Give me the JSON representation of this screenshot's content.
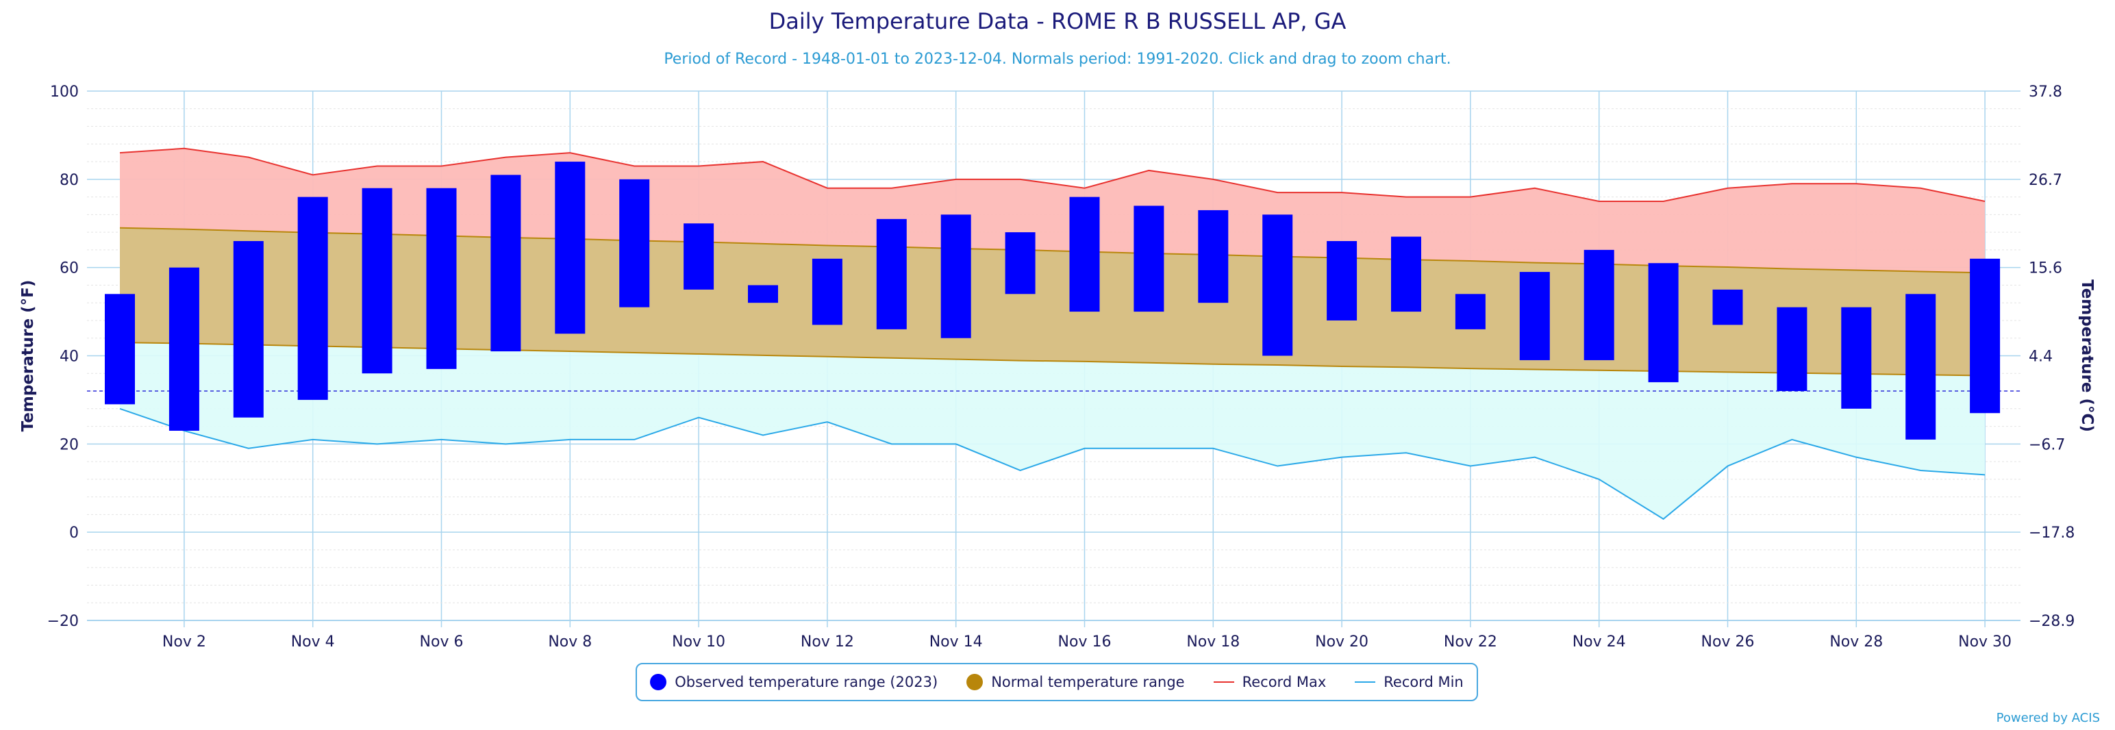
{
  "chart_data": {
    "type": "bar",
    "title": "Daily Temperature Data - ROME R B RUSSELL AP, GA",
    "subtitle": "Period of Record - 1948-01-01 to 2023-12-04. Normals period: 1991-2020. Click and drag to zoom chart.",
    "ylabel": "Temperature (°F)",
    "ylabel_right": "Temperature (°C)",
    "ylim": [
      -20,
      100
    ],
    "yticks": [
      "100",
      "80",
      "60",
      "40",
      "20",
      "0",
      "−20"
    ],
    "yticks_right": [
      "37.8",
      "26.7",
      "15.6",
      "4.4",
      "−6.7",
      "−17.8",
      "−28.9"
    ],
    "xticks": [
      "Nov 2",
      "Nov 4",
      "Nov 6",
      "Nov 8",
      "Nov 10",
      "Nov 12",
      "Nov 14",
      "Nov 16",
      "Nov 18",
      "Nov 20",
      "Nov 22",
      "Nov 24",
      "Nov 26",
      "Nov 28",
      "Nov 30"
    ],
    "freezing_line": 32,
    "days": [
      1,
      2,
      3,
      4,
      5,
      6,
      7,
      8,
      9,
      10,
      11,
      12,
      13,
      14,
      15,
      16,
      17,
      18,
      19,
      20,
      21,
      22,
      23,
      24,
      25,
      26,
      27,
      28,
      29,
      30
    ],
    "observed_low": [
      29,
      23,
      26,
      30,
      36,
      37,
      41,
      45,
      51,
      55,
      52,
      47,
      46,
      44,
      54,
      50,
      50,
      52,
      40,
      48,
      50,
      46,
      39,
      39,
      34,
      47,
      32,
      28,
      21,
      27
    ],
    "observed_high": [
      54,
      60,
      66,
      76,
      78,
      78,
      81,
      84,
      80,
      70,
      56,
      62,
      71,
      72,
      68,
      76,
      74,
      73,
      72,
      66,
      67,
      54,
      59,
      64,
      61,
      55,
      51,
      51,
      54,
      62
    ],
    "normal_high": [
      69,
      68.7,
      68.3,
      67.9,
      67.6,
      67.2,
      66.8,
      66.5,
      66.1,
      65.8,
      65.4,
      65,
      64.7,
      64.3,
      64,
      63.6,
      63.2,
      62.9,
      62.5,
      62.2,
      61.8,
      61.5,
      61.1,
      60.8,
      60.4,
      60.1,
      59.7,
      59.4,
      59.1,
      58.8
    ],
    "normal_low": [
      43,
      42.8,
      42.5,
      42.2,
      41.9,
      41.6,
      41.3,
      41,
      40.7,
      40.4,
      40.1,
      39.8,
      39.5,
      39.2,
      38.9,
      38.7,
      38.4,
      38.1,
      37.9,
      37.6,
      37.4,
      37.1,
      36.9,
      36.7,
      36.5,
      36.3,
      36.1,
      35.9,
      35.7,
      35.5
    ],
    "record_max": [
      86,
      87,
      85,
      81,
      83,
      83,
      85,
      86,
      83,
      83,
      84,
      78,
      78,
      80,
      80,
      78,
      82,
      80,
      77,
      77,
      76,
      76,
      78,
      75,
      75,
      78,
      79,
      79,
      78,
      75
    ],
    "record_min": [
      28,
      23,
      19,
      21,
      20,
      21,
      20,
      21,
      21,
      26,
      22,
      25,
      20,
      20,
      14,
      19,
      19,
      19,
      15,
      17,
      18,
      15,
      17,
      12,
      3,
      15,
      21,
      17,
      14,
      13
    ],
    "legend": [
      {
        "label": "Observed temperature range (2023)",
        "color": "#0000ff",
        "kind": "dot"
      },
      {
        "label": "Normal temperature range",
        "color": "#b8860b",
        "kind": "dot"
      },
      {
        "label": "Record Max",
        "color": "#e8322f",
        "kind": "line"
      },
      {
        "label": "Record Min",
        "color": "#2aa8e8",
        "kind": "line"
      }
    ],
    "colors": {
      "observed": "#0000ff",
      "normal_fill": "#d8c085",
      "normal_edge": "#b8860b",
      "record_max_fill": "#fdbbb7",
      "record_max_line": "#e8322f",
      "record_min_fill": "#dcfcfa",
      "record_min_line": "#2aa8e8",
      "grid": "#a8d4ee",
      "axis_text": "#1a1a5a",
      "freezing_line": "#2b2bd8"
    },
    "legend_position": "bottom-center"
  },
  "footer": {
    "powered_by": "Powered by ACIS"
  }
}
